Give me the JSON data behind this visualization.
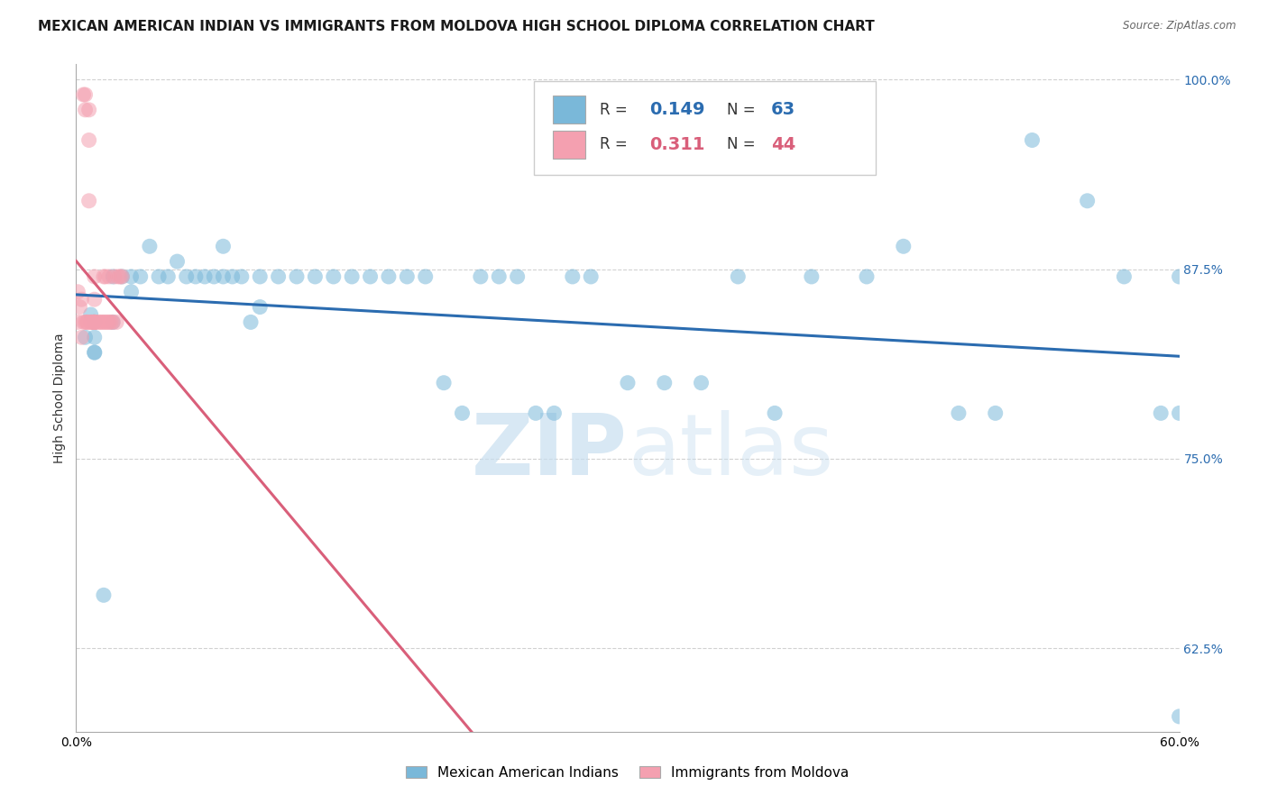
{
  "title": "MEXICAN AMERICAN INDIAN VS IMMIGRANTS FROM MOLDOVA HIGH SCHOOL DIPLOMA CORRELATION CHART",
  "source": "Source: ZipAtlas.com",
  "ylabel": "High School Diploma",
  "xlim": [
    0.0,
    0.6
  ],
  "ylim": [
    0.57,
    1.01
  ],
  "yticks": [
    0.625,
    0.75,
    0.875,
    1.0
  ],
  "ytick_labels": [
    "62.5%",
    "75.0%",
    "87.5%",
    "100.0%"
  ],
  "xticks": [
    0.0,
    0.1,
    0.2,
    0.3,
    0.4,
    0.5,
    0.6
  ],
  "xtick_labels": [
    "0.0%",
    "",
    "",
    "",
    "",
    "",
    "60.0%"
  ],
  "blue_color": "#7ab8d9",
  "pink_color": "#f4a0b0",
  "blue_line_color": "#2b6cb0",
  "pink_line_color": "#d95f7a",
  "watermark_color": "#c8dff0",
  "blue_scatter_x": [
    0.005,
    0.008,
    0.01,
    0.01,
    0.01,
    0.01,
    0.015,
    0.02,
    0.02,
    0.025,
    0.03,
    0.03,
    0.035,
    0.04,
    0.045,
    0.05,
    0.055,
    0.06,
    0.065,
    0.07,
    0.075,
    0.08,
    0.08,
    0.085,
    0.09,
    0.095,
    0.1,
    0.1,
    0.11,
    0.12,
    0.13,
    0.14,
    0.15,
    0.16,
    0.17,
    0.18,
    0.19,
    0.2,
    0.21,
    0.22,
    0.23,
    0.24,
    0.25,
    0.26,
    0.27,
    0.28,
    0.3,
    0.32,
    0.34,
    0.36,
    0.38,
    0.4,
    0.43,
    0.45,
    0.48,
    0.5,
    0.52,
    0.55,
    0.57,
    0.59,
    0.6,
    0.6,
    0.6
  ],
  "blue_scatter_y": [
    0.83,
    0.845,
    0.82,
    0.84,
    0.83,
    0.82,
    0.66,
    0.87,
    0.84,
    0.87,
    0.87,
    0.86,
    0.87,
    0.89,
    0.87,
    0.87,
    0.88,
    0.87,
    0.87,
    0.87,
    0.87,
    0.87,
    0.89,
    0.87,
    0.87,
    0.84,
    0.87,
    0.85,
    0.87,
    0.87,
    0.87,
    0.87,
    0.87,
    0.87,
    0.87,
    0.87,
    0.87,
    0.8,
    0.78,
    0.87,
    0.87,
    0.87,
    0.78,
    0.78,
    0.87,
    0.87,
    0.8,
    0.8,
    0.8,
    0.87,
    0.78,
    0.87,
    0.87,
    0.89,
    0.78,
    0.78,
    0.96,
    0.92,
    0.87,
    0.78,
    0.87,
    0.78,
    0.58
  ],
  "pink_scatter_x": [
    0.001,
    0.001,
    0.002,
    0.003,
    0.003,
    0.004,
    0.004,
    0.005,
    0.005,
    0.005,
    0.006,
    0.006,
    0.007,
    0.007,
    0.007,
    0.008,
    0.008,
    0.009,
    0.009,
    0.01,
    0.01,
    0.01,
    0.01,
    0.01,
    0.01,
    0.01,
    0.01,
    0.012,
    0.013,
    0.014,
    0.015,
    0.015,
    0.016,
    0.016,
    0.017,
    0.018,
    0.018,
    0.019,
    0.02,
    0.021,
    0.022,
    0.023,
    0.024,
    0.025
  ],
  "pink_scatter_y": [
    0.84,
    0.86,
    0.85,
    0.855,
    0.83,
    0.84,
    0.99,
    0.98,
    0.99,
    0.84,
    0.84,
    0.84,
    0.96,
    0.92,
    0.98,
    0.84,
    0.84,
    0.84,
    0.84,
    0.84,
    0.84,
    0.855,
    0.87,
    0.84,
    0.84,
    0.84,
    0.84,
    0.84,
    0.84,
    0.84,
    0.87,
    0.84,
    0.84,
    0.87,
    0.84,
    0.84,
    0.87,
    0.84,
    0.84,
    0.87,
    0.84,
    0.87,
    0.87,
    0.87
  ],
  "background_color": "#ffffff",
  "grid_color": "#cccccc"
}
